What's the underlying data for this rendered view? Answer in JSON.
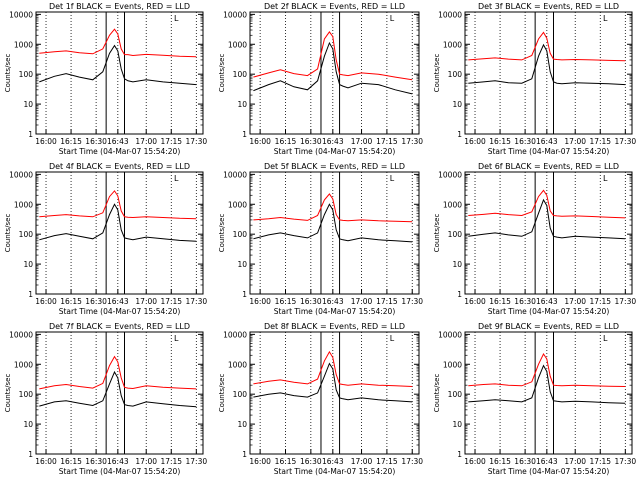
{
  "colors": {
    "events": "#000000",
    "lld": "#ff0000",
    "axis": "#000000",
    "background": "#ffffff"
  },
  "chart_data": [
    {
      "type": "line",
      "title": "Det 1f BLACK = Events, RED = LLD",
      "xlabel": "Start Time (04-Mar-07 15:54:20)",
      "ylabel": "Counts/sec",
      "y_scale": "log",
      "ylim": [
        1,
        12000
      ],
      "xlim": [
        "16:00",
        "17:30"
      ],
      "x_ticks": [
        "16:00",
        "16:15",
        "16:30",
        "16:43",
        "17:00",
        "17:15",
        "17:30"
      ],
      "y_ticks": [
        "1",
        "10",
        "100",
        "1000",
        "10000"
      ],
      "legend_marker": "L",
      "series": [
        {
          "name": "Events",
          "color": "#000000",
          "x": [
            "15:56",
            "16:05",
            "16:12",
            "16:20",
            "16:28",
            "16:34",
            "16:38",
            "16:41",
            "16:43",
            "16:45",
            "16:47",
            "16:49",
            "16:52",
            "17:00",
            "17:10",
            "17:20",
            "17:30"
          ],
          "y": [
            55,
            85,
            105,
            80,
            65,
            120,
            500,
            900,
            600,
            150,
            70,
            60,
            55,
            65,
            55,
            50,
            45
          ]
        },
        {
          "name": "LLD",
          "color": "#ff0000",
          "x": [
            "15:56",
            "16:05",
            "16:12",
            "16:20",
            "16:28",
            "16:34",
            "16:38",
            "16:41",
            "16:43",
            "16:45",
            "16:47",
            "16:49",
            "16:52",
            "17:00",
            "17:10",
            "17:20",
            "17:30"
          ],
          "y": [
            500,
            560,
            600,
            520,
            480,
            700,
            2000,
            3200,
            2200,
            700,
            450,
            450,
            420,
            460,
            430,
            400,
            380
          ]
        }
      ]
    },
    {
      "type": "line",
      "title": "Det 2f BLACK = Events, RED = LLD",
      "xlabel": "Start Time (04-Mar-07 15:54:20)",
      "ylabel": "Counts/sec",
      "y_scale": "log",
      "ylim": [
        1,
        12000
      ],
      "xlim": [
        "16:00",
        "17:30"
      ],
      "x_ticks": [
        "16:00",
        "16:15",
        "16:30",
        "16:43",
        "17:00",
        "17:15",
        "17:30"
      ],
      "y_ticks": [
        "1",
        "10",
        "100",
        "1000",
        "10000"
      ],
      "legend_marker": "L",
      "series": [
        {
          "name": "Events",
          "color": "#000000",
          "x": [
            "15:56",
            "16:05",
            "16:12",
            "16:20",
            "16:28",
            "16:34",
            "16:38",
            "16:41",
            "16:43",
            "16:45",
            "16:47",
            "16:49",
            "16:52",
            "17:00",
            "17:10",
            "17:20",
            "17:30"
          ],
          "y": [
            28,
            45,
            60,
            38,
            30,
            60,
            400,
            1100,
            700,
            120,
            45,
            40,
            35,
            50,
            45,
            30,
            22
          ]
        },
        {
          "name": "LLD",
          "color": "#ff0000",
          "x": [
            "15:56",
            "16:05",
            "16:12",
            "16:20",
            "16:28",
            "16:34",
            "16:38",
            "16:41",
            "16:43",
            "16:45",
            "16:47",
            "16:49",
            "16:52",
            "17:00",
            "17:10",
            "17:20",
            "17:30"
          ],
          "y": [
            80,
            110,
            140,
            105,
            90,
            150,
            1500,
            2600,
            1800,
            300,
            100,
            95,
            90,
            110,
            100,
            80,
            65
          ]
        }
      ]
    },
    {
      "type": "line",
      "title": "Det 3f BLACK = Events, RED = LLD",
      "xlabel": "Start Time (04-Mar-07 15:54:20)",
      "ylabel": "Counts/sec",
      "y_scale": "log",
      "ylim": [
        1,
        12000
      ],
      "xlim": [
        "16:00",
        "17:30"
      ],
      "x_ticks": [
        "16:00",
        "16:15",
        "16:30",
        "16:43",
        "17:00",
        "17:15",
        "17:30"
      ],
      "y_ticks": [
        "1",
        "10",
        "100",
        "1000",
        "10000"
      ],
      "legend_marker": "L",
      "series": [
        {
          "name": "Events",
          "color": "#000000",
          "x": [
            "15:56",
            "16:05",
            "16:12",
            "16:20",
            "16:28",
            "16:34",
            "16:38",
            "16:41",
            "16:43",
            "16:45",
            "16:47",
            "16:49",
            "16:52",
            "17:00",
            "17:10",
            "17:20",
            "17:30"
          ],
          "y": [
            50,
            55,
            60,
            52,
            50,
            70,
            400,
            950,
            600,
            120,
            55,
            50,
            48,
            52,
            50,
            48,
            45
          ]
        },
        {
          "name": "LLD",
          "color": "#ff0000",
          "x": [
            "15:56",
            "16:05",
            "16:12",
            "16:20",
            "16:28",
            "16:34",
            "16:38",
            "16:41",
            "16:43",
            "16:45",
            "16:47",
            "16:49",
            "16:52",
            "17:00",
            "17:10",
            "17:20",
            "17:30"
          ],
          "y": [
            300,
            330,
            350,
            320,
            300,
            420,
            1500,
            2500,
            1600,
            500,
            320,
            310,
            300,
            310,
            300,
            290,
            280
          ]
        }
      ]
    },
    {
      "type": "line",
      "title": "Det 4f BLACK = Events, RED = LLD",
      "xlabel": "Start Time (04-Mar-07 15:54:20)",
      "ylabel": "Counts/sec",
      "y_scale": "log",
      "ylim": [
        1,
        12000
      ],
      "xlim": [
        "16:00",
        "17:30"
      ],
      "x_ticks": [
        "16:00",
        "16:15",
        "16:30",
        "16:43",
        "17:00",
        "17:15",
        "17:30"
      ],
      "y_ticks": [
        "1",
        "10",
        "100",
        "1000",
        "10000"
      ],
      "legend_marker": "L",
      "series": [
        {
          "name": "Events",
          "color": "#000000",
          "x": [
            "15:56",
            "16:05",
            "16:12",
            "16:20",
            "16:28",
            "16:34",
            "16:38",
            "16:41",
            "16:43",
            "16:45",
            "16:47",
            "16:49",
            "16:52",
            "17:00",
            "17:10",
            "17:20",
            "17:30"
          ],
          "y": [
            65,
            90,
            105,
            85,
            70,
            110,
            450,
            1000,
            650,
            140,
            75,
            70,
            65,
            80,
            70,
            62,
            58
          ]
        },
        {
          "name": "LLD",
          "color": "#ff0000",
          "x": [
            "15:56",
            "16:05",
            "16:12",
            "16:20",
            "16:28",
            "16:34",
            "16:38",
            "16:41",
            "16:43",
            "16:45",
            "16:47",
            "16:49",
            "16:52",
            "17:00",
            "17:10",
            "17:20",
            "17:30"
          ],
          "y": [
            380,
            420,
            450,
            410,
            380,
            520,
            1800,
            2800,
            1900,
            600,
            380,
            370,
            360,
            380,
            360,
            340,
            330
          ]
        }
      ]
    },
    {
      "type": "line",
      "title": "Det 5f BLACK = Events, RED = LLD",
      "xlabel": "Start Time (04-Mar-07 15:54:20)",
      "ylabel": "Counts/sec",
      "y_scale": "log",
      "ylim": [
        1,
        12000
      ],
      "xlim": [
        "16:00",
        "17:30"
      ],
      "x_ticks": [
        "16:00",
        "16:15",
        "16:30",
        "16:43",
        "17:00",
        "17:15",
        "17:30"
      ],
      "y_ticks": [
        "1",
        "10",
        "100",
        "1000",
        "10000"
      ],
      "legend_marker": "L",
      "series": [
        {
          "name": "Events",
          "color": "#000000",
          "x": [
            "15:56",
            "16:05",
            "16:12",
            "16:20",
            "16:28",
            "16:34",
            "16:38",
            "16:41",
            "16:43",
            "16:45",
            "16:47",
            "16:49",
            "16:52",
            "17:00",
            "17:10",
            "17:20",
            "17:30"
          ],
          "y": [
            70,
            95,
            110,
            90,
            75,
            110,
            450,
            1000,
            650,
            140,
            70,
            65,
            60,
            75,
            65,
            60,
            55
          ]
        },
        {
          "name": "LLD",
          "color": "#ff0000",
          "x": [
            "15:56",
            "16:05",
            "16:12",
            "16:20",
            "16:28",
            "16:34",
            "16:38",
            "16:41",
            "16:43",
            "16:45",
            "16:47",
            "16:49",
            "16:52",
            "17:00",
            "17:10",
            "17:20",
            "17:30"
          ],
          "y": [
            300,
            330,
            360,
            320,
            290,
            420,
            1400,
            2200,
            1500,
            450,
            300,
            290,
            280,
            300,
            280,
            270,
            260
          ]
        }
      ]
    },
    {
      "type": "line",
      "title": "Det 6f BLACK = Events, RED = LLD",
      "xlabel": "Start Time (04-Mar-07 15:54:20)",
      "ylabel": "Counts/sec",
      "y_scale": "log",
      "ylim": [
        1,
        12000
      ],
      "xlim": [
        "16:00",
        "17:30"
      ],
      "x_ticks": [
        "16:00",
        "16:15",
        "16:30",
        "16:43",
        "17:00",
        "17:15",
        "17:30"
      ],
      "y_ticks": [
        "1",
        "10",
        "100",
        "1000",
        "10000"
      ],
      "legend_marker": "L",
      "series": [
        {
          "name": "Events",
          "color": "#000000",
          "x": [
            "15:56",
            "16:05",
            "16:12",
            "16:20",
            "16:28",
            "16:34",
            "16:38",
            "16:41",
            "16:43",
            "16:45",
            "16:47",
            "16:49",
            "16:52",
            "17:00",
            "17:10",
            "17:20",
            "17:30"
          ],
          "y": [
            85,
            100,
            110,
            95,
            85,
            120,
            500,
            1400,
            900,
            160,
            85,
            80,
            75,
            85,
            80,
            75,
            70
          ]
        },
        {
          "name": "LLD",
          "color": "#ff0000",
          "x": [
            "15:56",
            "16:05",
            "16:12",
            "16:20",
            "16:28",
            "16:34",
            "16:38",
            "16:41",
            "16:43",
            "16:45",
            "16:47",
            "16:49",
            "16:52",
            "17:00",
            "17:10",
            "17:20",
            "17:30"
          ],
          "y": [
            420,
            460,
            500,
            450,
            420,
            560,
            1800,
            2900,
            2000,
            600,
            420,
            410,
            400,
            410,
            390,
            370,
            350
          ]
        }
      ]
    },
    {
      "type": "line",
      "title": "Det 7f BLACK = Events, RED = LLD",
      "xlabel": "Start Time (04-Mar-07 15:54:20)",
      "ylabel": "Counts/sec",
      "y_scale": "log",
      "ylim": [
        1,
        12000
      ],
      "xlim": [
        "16:00",
        "17:30"
      ],
      "x_ticks": [
        "16:00",
        "16:15",
        "16:30",
        "16:43",
        "17:00",
        "17:15",
        "17:30"
      ],
      "y_ticks": [
        "1",
        "10",
        "100",
        "1000",
        "10000"
      ],
      "legend_marker": "L",
      "series": [
        {
          "name": "Events",
          "color": "#000000",
          "x": [
            "15:56",
            "16:05",
            "16:12",
            "16:20",
            "16:28",
            "16:34",
            "16:38",
            "16:41",
            "16:43",
            "16:45",
            "16:47",
            "16:49",
            "16:52",
            "17:00",
            "17:10",
            "17:20",
            "17:30"
          ],
          "y": [
            40,
            55,
            60,
            50,
            42,
            60,
            220,
            550,
            350,
            90,
            45,
            42,
            40,
            55,
            48,
            42,
            38
          ]
        },
        {
          "name": "LLD",
          "color": "#ff0000",
          "x": [
            "15:56",
            "16:05",
            "16:12",
            "16:20",
            "16:28",
            "16:34",
            "16:38",
            "16:41",
            "16:43",
            "16:45",
            "16:47",
            "16:49",
            "16:52",
            "17:00",
            "17:10",
            "17:20",
            "17:30"
          ],
          "y": [
            150,
            190,
            210,
            180,
            160,
            230,
            900,
            1800,
            1200,
            350,
            170,
            160,
            155,
            190,
            170,
            160,
            150
          ]
        }
      ]
    },
    {
      "type": "line",
      "title": "Det 8f BLACK = Events, RED = LLD",
      "xlabel": "Start Time (04-Mar-07 15:54:20)",
      "ylabel": "Counts/sec",
      "y_scale": "log",
      "ylim": [
        1,
        12000
      ],
      "xlim": [
        "16:00",
        "17:30"
      ],
      "x_ticks": [
        "16:00",
        "16:15",
        "16:30",
        "16:43",
        "17:00",
        "17:15",
        "17:30"
      ],
      "y_ticks": [
        "1",
        "10",
        "100",
        "1000",
        "10000"
      ],
      "legend_marker": "L",
      "series": [
        {
          "name": "Events",
          "color": "#000000",
          "x": [
            "15:56",
            "16:05",
            "16:12",
            "16:20",
            "16:28",
            "16:34",
            "16:38",
            "16:41",
            "16:43",
            "16:45",
            "16:47",
            "16:49",
            "16:52",
            "17:00",
            "17:10",
            "17:20",
            "17:30"
          ],
          "y": [
            80,
            100,
            110,
            90,
            80,
            110,
            400,
            1050,
            700,
            140,
            75,
            70,
            65,
            75,
            65,
            60,
            55
          ]
        },
        {
          "name": "LLD",
          "color": "#ff0000",
          "x": [
            "15:56",
            "16:05",
            "16:12",
            "16:20",
            "16:28",
            "16:34",
            "16:38",
            "16:41",
            "16:43",
            "16:45",
            "16:47",
            "16:49",
            "16:52",
            "17:00",
            "17:10",
            "17:20",
            "17:30"
          ],
          "y": [
            220,
            270,
            300,
            250,
            220,
            320,
            1300,
            2600,
            1700,
            450,
            220,
            210,
            200,
            220,
            200,
            190,
            180
          ]
        }
      ]
    },
    {
      "type": "line",
      "title": "Det 9f BLACK = Events, RED = LLD",
      "xlabel": "Start Time (04-Mar-07 15:54:20)",
      "ylabel": "Counts/sec",
      "y_scale": "log",
      "ylim": [
        1,
        12000
      ],
      "xlim": [
        "16:00",
        "17:30"
      ],
      "x_ticks": [
        "16:00",
        "16:15",
        "16:30",
        "16:43",
        "17:00",
        "17:15",
        "17:30"
      ],
      "y_ticks": [
        "1",
        "10",
        "100",
        "1000",
        "10000"
      ],
      "legend_marker": "L",
      "series": [
        {
          "name": "Events",
          "color": "#000000",
          "x": [
            "15:56",
            "16:05",
            "16:12",
            "16:20",
            "16:28",
            "16:34",
            "16:38",
            "16:41",
            "16:43",
            "16:45",
            "16:47",
            "16:49",
            "16:52",
            "17:00",
            "17:10",
            "17:20",
            "17:30"
          ],
          "y": [
            55,
            60,
            65,
            60,
            55,
            75,
            350,
            900,
            580,
            120,
            60,
            58,
            55,
            58,
            55,
            52,
            50
          ]
        },
        {
          "name": "LLD",
          "color": "#ff0000",
          "x": [
            "15:56",
            "16:05",
            "16:12",
            "16:20",
            "16:28",
            "16:34",
            "16:38",
            "16:41",
            "16:43",
            "16:45",
            "16:47",
            "16:49",
            "16:52",
            "17:00",
            "17:10",
            "17:20",
            "17:30"
          ],
          "y": [
            190,
            210,
            220,
            200,
            190,
            260,
            1000,
            2200,
            1500,
            400,
            200,
            195,
            190,
            200,
            190,
            185,
            180
          ]
        }
      ]
    }
  ]
}
